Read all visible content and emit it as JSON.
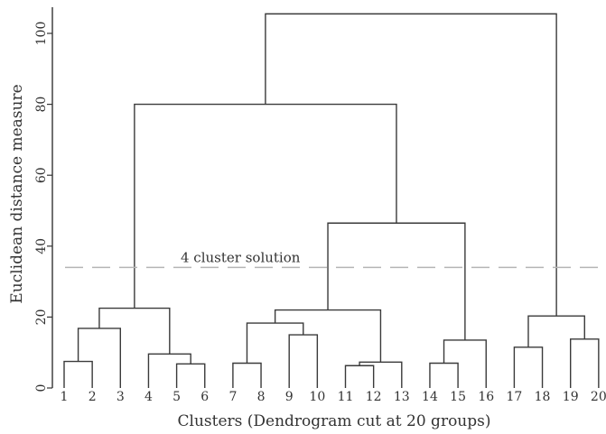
{
  "chart_data": {
    "type": "dendrogram",
    "xlabel": "Clusters (Dendrogram cut at 20 groups)",
    "ylabel": "Euclidean distance measure",
    "ylim": [
      0,
      107
    ],
    "yticks": [
      0,
      20,
      40,
      60,
      80,
      100
    ],
    "leaves": [
      "1",
      "2",
      "3",
      "4",
      "5",
      "6",
      "7",
      "8",
      "9",
      "10",
      "11",
      "12",
      "13",
      "14",
      "15",
      "16",
      "17",
      "18",
      "19",
      "20"
    ],
    "merges": [
      {
        "a": 0,
        "b": 1,
        "height": 7.5
      },
      {
        "a": 4,
        "b": 5,
        "height": 6.8
      },
      {
        "a": 6,
        "b": 7,
        "height": 7.0
      },
      {
        "a": 8,
        "b": 9,
        "height": 15.0
      },
      {
        "a": 10,
        "b": 11,
        "height": 6.3
      },
      {
        "a": 13,
        "b": 14,
        "height": 7.0
      },
      {
        "a": 16,
        "b": 17,
        "height": 11.5
      },
      {
        "a": 18,
        "b": 19,
        "height": 13.8
      },
      {
        "a": 20,
        "b": 2,
        "height": 16.8
      },
      {
        "a": 3,
        "b": 21,
        "height": 9.6
      },
      {
        "a": 28,
        "b": 29,
        "height": 22.5
      },
      {
        "a": 22,
        "b": 23,
        "height": 18.3
      },
      {
        "a": 24,
        "b": 12,
        "height": 7.3
      },
      {
        "a": 31,
        "b": 32,
        "height": 22.0
      },
      {
        "a": 25,
        "b": 15,
        "height": 13.5
      },
      {
        "a": 33,
        "b": 34,
        "height": 46.5
      },
      {
        "a": 30,
        "b": 35,
        "height": 80.0
      },
      {
        "a": 26,
        "b": 27,
        "height": 20.3
      },
      {
        "a": 36,
        "b": 37,
        "height": 105.5
      }
    ],
    "cut": {
      "label": "4 cluster solution",
      "height": 34
    }
  }
}
